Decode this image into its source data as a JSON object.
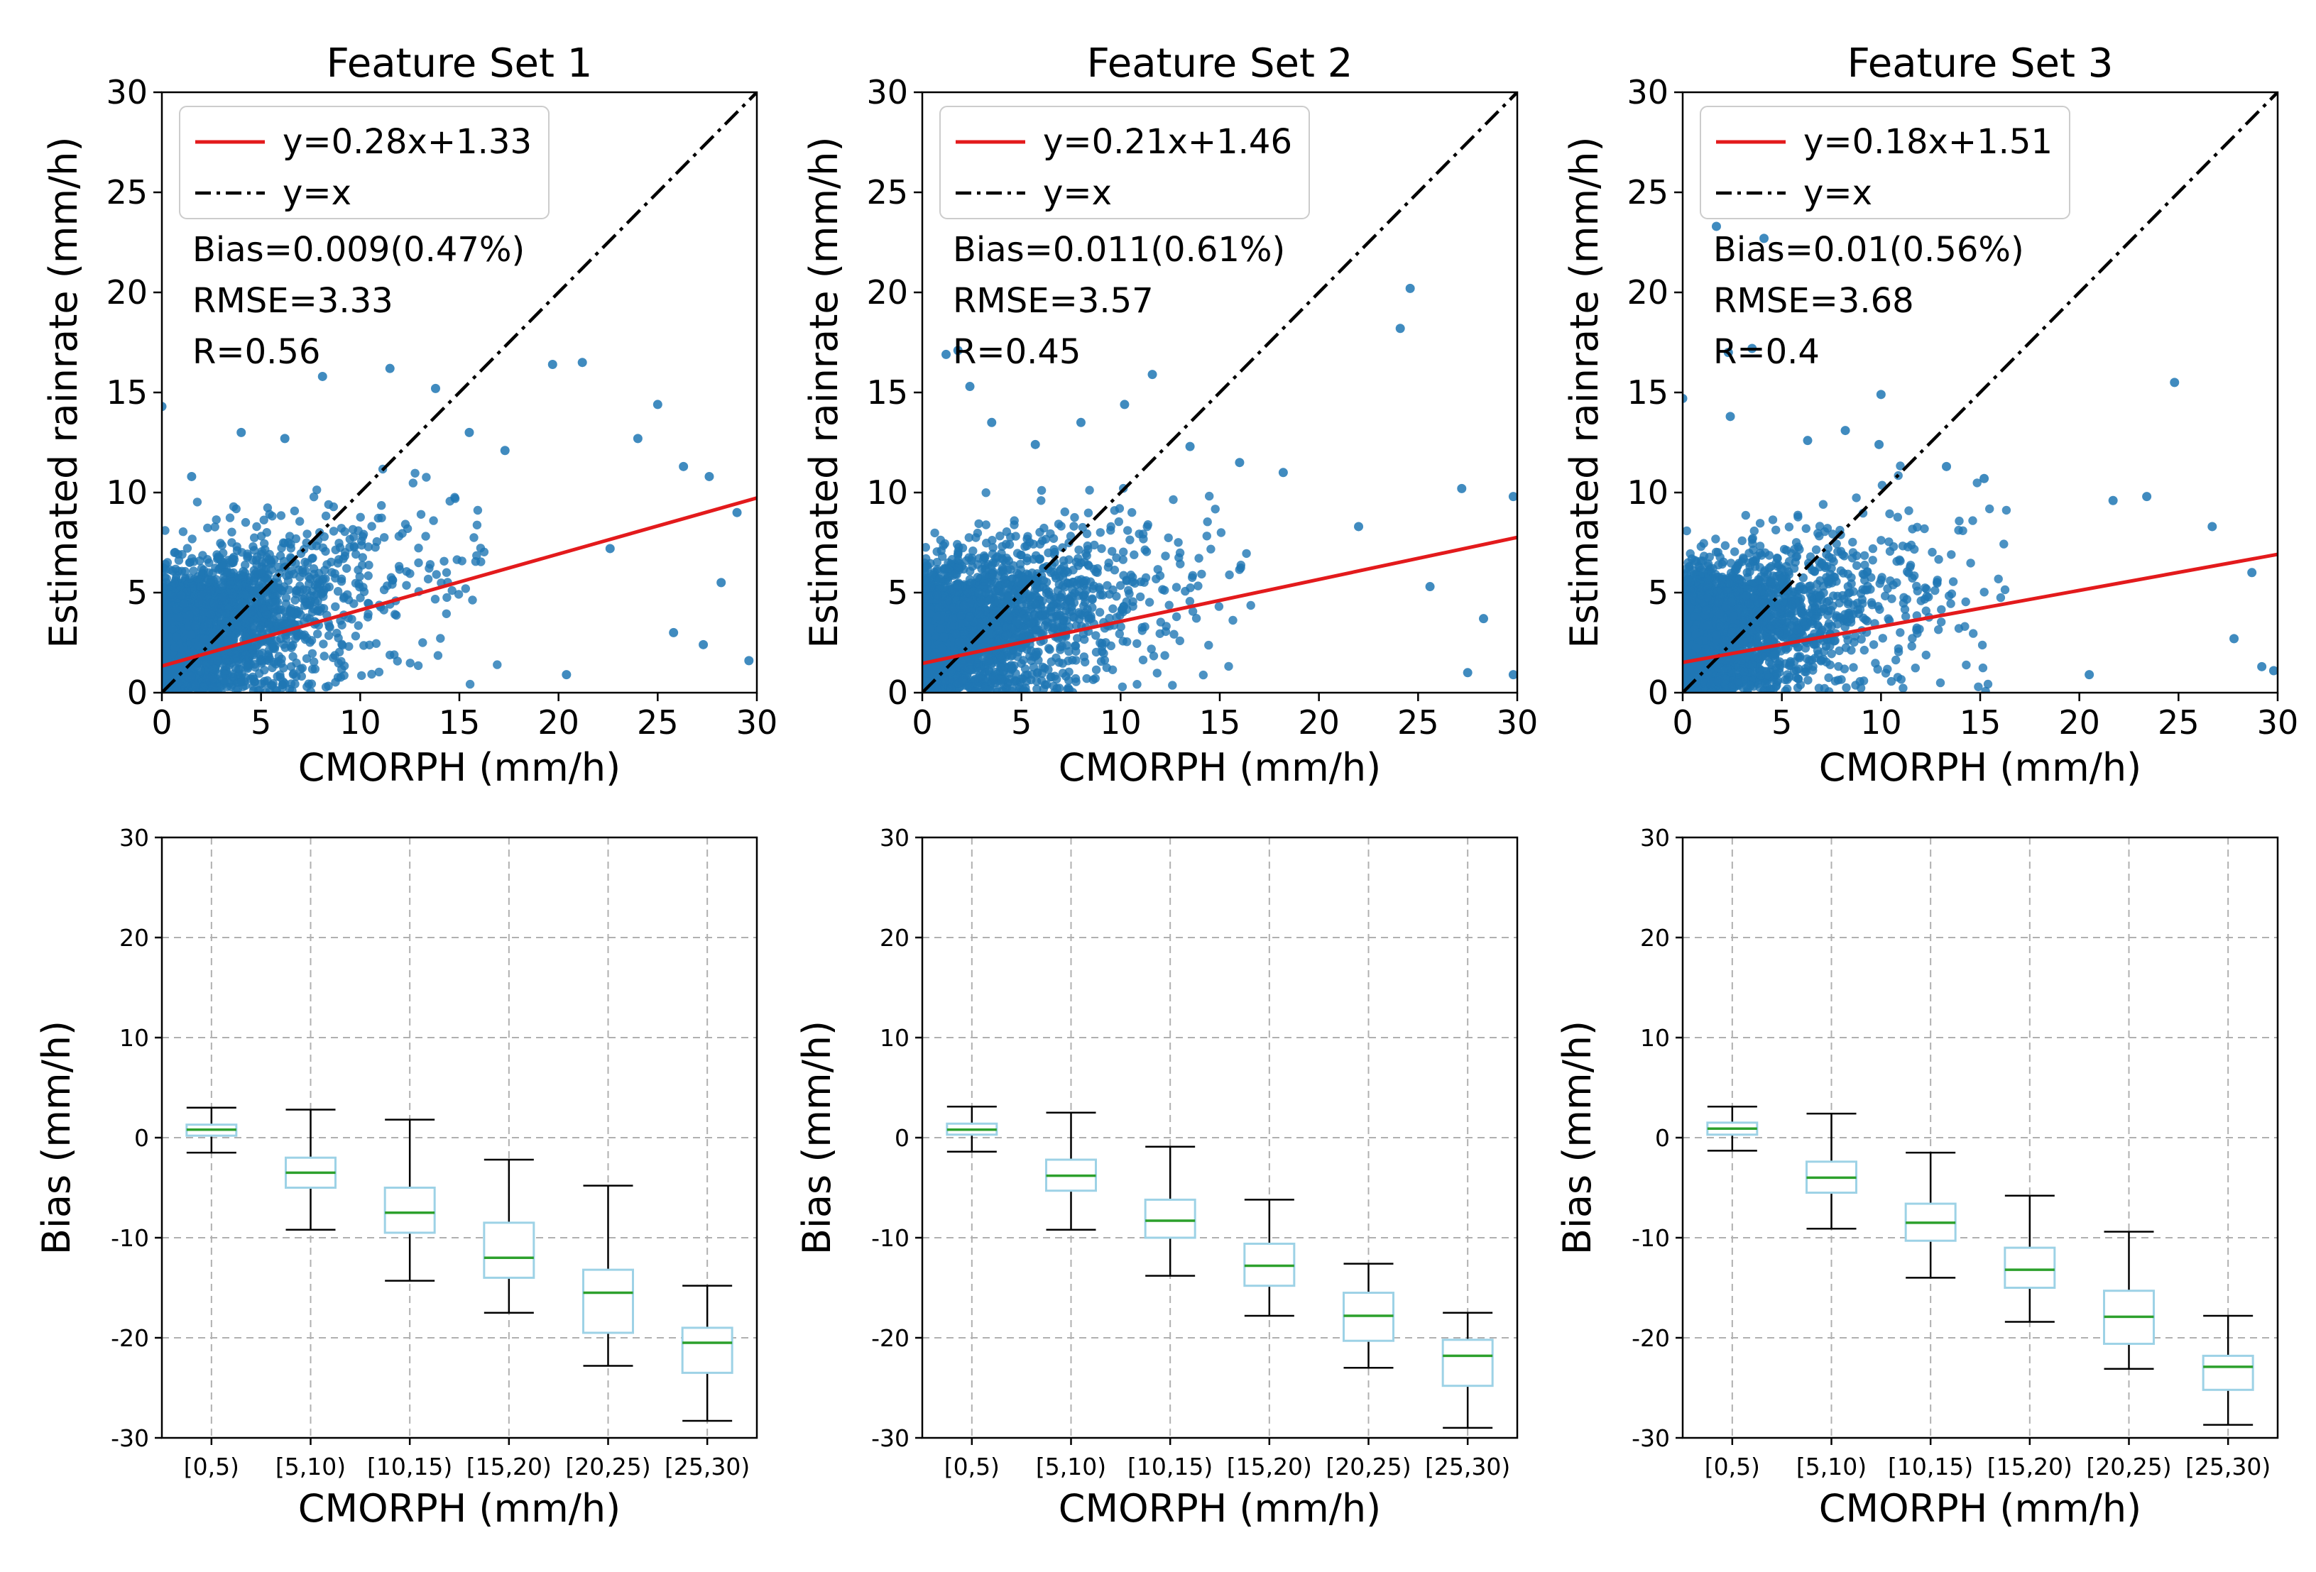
{
  "chart_data": [
    {
      "type": "scatter",
      "panel": "top-left",
      "title": "Feature Set 1",
      "xlabel": "CMORPH (mm/h)",
      "ylabel": "Estimated rainrate (mm/h)",
      "xlim": [
        0,
        30
      ],
      "ylim": [
        0,
        30
      ],
      "xticks": [
        0,
        5,
        10,
        15,
        20,
        25,
        30
      ],
      "yticks": [
        0,
        5,
        10,
        15,
        20,
        25,
        30
      ],
      "fit": {
        "slope": 0.28,
        "intercept": 1.33,
        "label": "y=0.28x+1.33",
        "color": "#e31a1c"
      },
      "identity": {
        "label": "y=x",
        "color": "#000000"
      },
      "stats": {
        "bias": "Bias=0.009(0.47%)",
        "rmse": "RMSE=3.33",
        "r": "R=0.56"
      },
      "legend": "upper-left",
      "point_color": "#1f77b4",
      "outliers": [
        [
          0,
          14.3
        ],
        [
          1.5,
          10.8
        ],
        [
          4.0,
          13.0
        ],
        [
          6.2,
          12.7
        ],
        [
          8.1,
          15.8
        ],
        [
          11.5,
          16.2
        ],
        [
          13.8,
          15.2
        ],
        [
          15.5,
          13.0
        ],
        [
          17.3,
          12.1
        ],
        [
          19.7,
          16.4
        ],
        [
          21.2,
          16.5
        ],
        [
          24.0,
          12.7
        ],
        [
          25.0,
          14.4
        ],
        [
          26.3,
          11.3
        ],
        [
          27.6,
          10.8
        ],
        [
          29.0,
          9.0
        ],
        [
          22.6,
          7.2
        ],
        [
          25.8,
          3.0
        ],
        [
          27.3,
          2.4
        ],
        [
          29.6,
          1.6
        ],
        [
          28.2,
          5.5
        ],
        [
          20.4,
          0.9
        ]
      ],
      "bulk_cloud": {
        "x_range": [
          0,
          19
        ],
        "description": "dense cluster of CMORPH vs estimate points, concentrated at 0-10 mm/h"
      }
    },
    {
      "type": "scatter",
      "panel": "top-middle",
      "title": "Feature Set 2",
      "xlabel": "CMORPH (mm/h)",
      "ylabel": "Estimated rainrate (mm/h)",
      "xlim": [
        0,
        30
      ],
      "ylim": [
        0,
        30
      ],
      "xticks": [
        0,
        5,
        10,
        15,
        20,
        25,
        30
      ],
      "yticks": [
        0,
        5,
        10,
        15,
        20,
        25,
        30
      ],
      "fit": {
        "slope": 0.21,
        "intercept": 1.46,
        "label": "y=0.21x+1.46",
        "color": "#e31a1c"
      },
      "identity": {
        "label": "y=x",
        "color": "#000000"
      },
      "stats": {
        "bias": "Bias=0.011(0.61%)",
        "rmse": "RMSE=3.57",
        "r": "R=0.45"
      },
      "legend": "upper-left",
      "point_color": "#1f77b4",
      "outliers": [
        [
          1.2,
          16.9
        ],
        [
          1.8,
          17.1
        ],
        [
          2.4,
          15.3
        ],
        [
          3.5,
          13.5
        ],
        [
          5.7,
          12.4
        ],
        [
          8.0,
          13.5
        ],
        [
          10.2,
          14.4
        ],
        [
          11.6,
          15.9
        ],
        [
          13.5,
          12.3
        ],
        [
          16.0,
          11.5
        ],
        [
          18.2,
          11.0
        ],
        [
          24.1,
          18.2
        ],
        [
          24.6,
          20.2
        ],
        [
          27.2,
          10.2
        ],
        [
          29.8,
          9.8
        ],
        [
          22.0,
          8.3
        ],
        [
          25.6,
          5.3
        ],
        [
          28.3,
          3.7
        ],
        [
          29.8,
          0.9
        ],
        [
          27.5,
          1.0
        ]
      ],
      "bulk_cloud": {
        "x_range": [
          0,
          20
        ],
        "description": "dense cluster of CMORPH vs estimate points, concentrated at 0-10 mm/h"
      }
    },
    {
      "type": "scatter",
      "panel": "top-right",
      "title": "Feature Set 3",
      "xlabel": "CMORPH (mm/h)",
      "ylabel": "Estimated rainrate (mm/h)",
      "xlim": [
        0,
        30
      ],
      "ylim": [
        0,
        30
      ],
      "xticks": [
        0,
        5,
        10,
        15,
        20,
        25,
        30
      ],
      "yticks": [
        0,
        5,
        10,
        15,
        20,
        25,
        30
      ],
      "fit": {
        "slope": 0.18,
        "intercept": 1.51,
        "label": "y=0.18x+1.51",
        "color": "#e31a1c"
      },
      "identity": {
        "label": "y=x",
        "color": "#000000"
      },
      "stats": {
        "bias": "Bias=0.01(0.56%)",
        "rmse": "RMSE=3.68",
        "r": "R=0.4"
      },
      "legend": "upper-left",
      "point_color": "#1f77b4",
      "outliers": [
        [
          0,
          14.7
        ],
        [
          1.7,
          23.3
        ],
        [
          2.3,
          17.0
        ],
        [
          3.5,
          17.2
        ],
        [
          4.1,
          22.7
        ],
        [
          2.4,
          13.8
        ],
        [
          6.3,
          12.6
        ],
        [
          8.2,
          13.1
        ],
        [
          9.9,
          12.4
        ],
        [
          10.0,
          14.9
        ],
        [
          13.3,
          11.3
        ],
        [
          15.2,
          10.7
        ],
        [
          21.7,
          9.6
        ],
        [
          23.4,
          9.8
        ],
        [
          24.8,
          15.5
        ],
        [
          26.7,
          8.3
        ],
        [
          28.7,
          6.0
        ],
        [
          29.2,
          1.3
        ],
        [
          29.8,
          1.1
        ],
        [
          27.8,
          2.7
        ],
        [
          20.5,
          0.9
        ]
      ],
      "bulk_cloud": {
        "x_range": [
          0,
          20
        ],
        "description": "dense cluster of CMORPH vs estimate points, concentrated at 0-10 mm/h"
      }
    },
    {
      "type": "box",
      "panel": "bottom-left",
      "xlabel": "CMORPH (mm/h)",
      "ylabel": "Bias (mm/h)",
      "ylim": [
        -30,
        30
      ],
      "yticks": [
        -30,
        -20,
        -10,
        0,
        10,
        20,
        30
      ],
      "grid": true,
      "box_color": "#9dd2e6",
      "median_color": "#2ca02c",
      "categories": [
        "[0,5)",
        "[5,10)",
        "[10,15)",
        "[15,20)",
        "[20,25)",
        "[25,30)"
      ],
      "boxes": [
        {
          "whislo": -1.5,
          "q1": 0.2,
          "med": 0.8,
          "q3": 1.3,
          "whishi": 3.0
        },
        {
          "whislo": -9.2,
          "q1": -5.0,
          "med": -3.5,
          "q3": -2.0,
          "whishi": 2.8
        },
        {
          "whislo": -14.3,
          "q1": -9.5,
          "med": -7.5,
          "q3": -5.0,
          "whishi": 1.8
        },
        {
          "whislo": -17.5,
          "q1": -14.0,
          "med": -12.0,
          "q3": -8.5,
          "whishi": -2.2
        },
        {
          "whislo": -22.8,
          "q1": -19.5,
          "med": -15.5,
          "q3": -13.2,
          "whishi": -4.8
        },
        {
          "whislo": -28.3,
          "q1": -23.5,
          "med": -20.5,
          "q3": -19.0,
          "whishi": -14.8
        }
      ]
    },
    {
      "type": "box",
      "panel": "bottom-middle",
      "xlabel": "CMORPH (mm/h)",
      "ylabel": "Bias (mm/h)",
      "ylim": [
        -30,
        30
      ],
      "yticks": [
        -30,
        -20,
        -10,
        0,
        10,
        20,
        30
      ],
      "grid": true,
      "box_color": "#9dd2e6",
      "median_color": "#2ca02c",
      "categories": [
        "[0,5)",
        "[5,10)",
        "[10,15)",
        "[15,20)",
        "[20,25)",
        "[25,30)"
      ],
      "boxes": [
        {
          "whislo": -1.4,
          "q1": 0.3,
          "med": 0.8,
          "q3": 1.4,
          "whishi": 3.1
        },
        {
          "whislo": -9.2,
          "q1": -5.3,
          "med": -3.8,
          "q3": -2.2,
          "whishi": 2.5
        },
        {
          "whislo": -13.8,
          "q1": -10.0,
          "med": -8.3,
          "q3": -6.2,
          "whishi": -0.9
        },
        {
          "whislo": -17.8,
          "q1": -14.8,
          "med": -12.8,
          "q3": -10.6,
          "whishi": -6.2
        },
        {
          "whislo": -23.0,
          "q1": -20.3,
          "med": -17.8,
          "q3": -15.5,
          "whishi": -12.6
        },
        {
          "whislo": -29.0,
          "q1": -24.8,
          "med": -21.8,
          "q3": -20.2,
          "whishi": -17.5
        }
      ]
    },
    {
      "type": "box",
      "panel": "bottom-right",
      "xlabel": "CMORPH (mm/h)",
      "ylabel": "Bias (mm/h)",
      "ylim": [
        -30,
        30
      ],
      "yticks": [
        -30,
        -20,
        -10,
        0,
        10,
        20,
        30
      ],
      "grid": true,
      "box_color": "#9dd2e6",
      "median_color": "#2ca02c",
      "categories": [
        "[0,5)",
        "[5,10)",
        "[10,15)",
        "[15,20)",
        "[20,25)",
        "[25,30)"
      ],
      "boxes": [
        {
          "whislo": -1.3,
          "q1": 0.3,
          "med": 0.9,
          "q3": 1.5,
          "whishi": 3.1
        },
        {
          "whislo": -9.1,
          "q1": -5.5,
          "med": -4.0,
          "q3": -2.4,
          "whishi": 2.4
        },
        {
          "whislo": -14.0,
          "q1": -10.3,
          "med": -8.5,
          "q3": -6.6,
          "whishi": -1.5
        },
        {
          "whislo": -18.4,
          "q1": -15.0,
          "med": -13.2,
          "q3": -11.0,
          "whishi": -5.8
        },
        {
          "whislo": -23.1,
          "q1": -20.6,
          "med": -17.9,
          "q3": -15.3,
          "whishi": -9.4
        },
        {
          "whislo": -28.7,
          "q1": -25.2,
          "med": -22.9,
          "q3": -21.8,
          "whishi": -17.8
        }
      ]
    }
  ]
}
